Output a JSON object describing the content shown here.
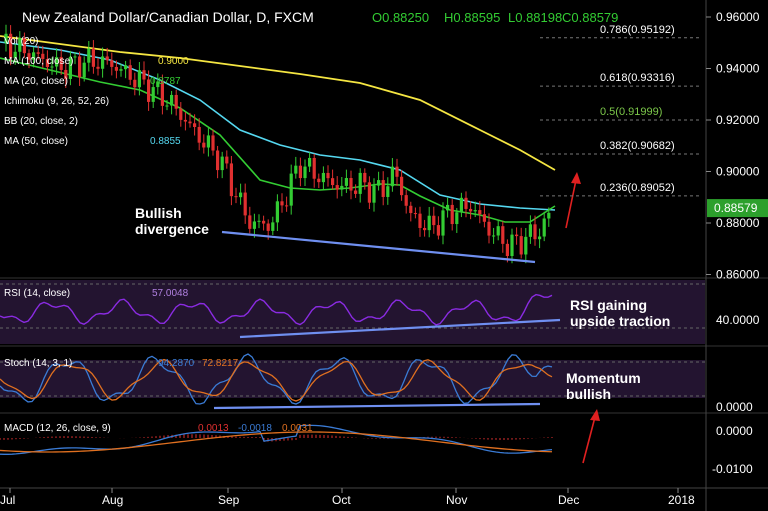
{
  "header": {
    "symbol": "New Zealand Dollar/Canadian Dollar, D, FXCM",
    "open": "O0.88250",
    "high": "H0.88595",
    "low": "L0.88198",
    "close": "C0.88579"
  },
  "indicators": [
    {
      "label": "Vol (20)",
      "value": "",
      "color": "#ffffff"
    },
    {
      "label": "MA (100, close)",
      "value": "0.9000",
      "color": "#f5e642"
    },
    {
      "label": "MA (20, close)",
      "value": "0.8787",
      "color": "#33cc33"
    },
    {
      "label": "Ichimoku (9, 26, 52, 26)",
      "value": "",
      "color": "#ffffff"
    },
    {
      "label": "BB (20, close, 2)",
      "value": "",
      "color": "#ffffff"
    },
    {
      "label": "MA (50, close)",
      "value": "0.8855",
      "color": "#55d8f0"
    }
  ],
  "fib_levels": [
    {
      "label": "0.786(0.95192)",
      "value": 0.95192,
      "color": "#ffffff"
    },
    {
      "label": "0.618(0.93316)",
      "value": 0.93316,
      "color": "#ffffff"
    },
    {
      "label": "0.5(0.91999)",
      "value": 0.91999,
      "color": "#7cc84a"
    },
    {
      "label": "0.382(0.90682)",
      "value": 0.90682,
      "color": "#ffffff"
    },
    {
      "label": "0.236(0.89052)",
      "value": 0.89052,
      "color": "#ffffff"
    }
  ],
  "price_axis": [
    "0.96000",
    "0.94000",
    "0.92000",
    "0.90000",
    "0.88000",
    "0.86000"
  ],
  "current_price": "0.88579",
  "rsi": {
    "label": "RSI (14, close)",
    "value": "57.0048",
    "axis": "40.0000"
  },
  "stoch": {
    "label": "Stoch (14, 3, 1)",
    "k": "94.2870",
    "d": "72.8217",
    "axis": "0.0000"
  },
  "macd": {
    "label": "MACD (12, 26, close, 9)",
    "v1": "0.0013",
    "v2": "-0.0018",
    "v3": "0.0031",
    "axis_top": "0.0000",
    "axis_bottom": "-0.0100"
  },
  "x_axis": [
    "Jul",
    "Aug",
    "Sep",
    "Oct",
    "Nov",
    "Dec",
    "2018"
  ],
  "annotations": {
    "bullish_divergence_line1": "Bullish",
    "bullish_divergence_line2": "divergence",
    "rsi_note_line1": "RSI gaining",
    "rsi_note_line2": "upside traction",
    "momentum_line1": "Momentum",
    "momentum_line2": "bullish"
  },
  "colors": {
    "up": "#33cc33",
    "down": "#e03030",
    "ma100": "#f5e642",
    "ma20": "#33cc33",
    "ma50": "#55d8f0",
    "trendline": "#6f8ff0",
    "arrow": "#e02020",
    "rsi_line": "#8a2be2",
    "stoch_k": "#3a7bd5",
    "stoch_d": "#e07020",
    "macd_line": "#3a7bd5",
    "signal_line": "#e07020",
    "osc_bg": "#2a1638"
  },
  "chart_data": {
    "type": "candlestick",
    "title": "New Zealand Dollar/Canadian Dollar, D, FXCM",
    "y_range": [
      0.855,
      0.965
    ],
    "x_ticks": [
      "Jul",
      "Aug",
      "Sep",
      "Oct",
      "Nov",
      "Dec",
      "2018"
    ],
    "last_close": 0.88579,
    "ohlc": {
      "open": 0.8825,
      "high": 0.88595,
      "low": 0.88198,
      "close": 0.88579
    },
    "moving_averages": {
      "MA(100)": 0.9,
      "MA(20)": 0.8787,
      "MA(50)": 0.8855
    },
    "rsi_last": 57.0048,
    "stoch_k_last": 94.287,
    "stoch_d_last": 72.8217,
    "macd_values": [
      0.0013,
      -0.0018,
      0.0031
    ]
  }
}
